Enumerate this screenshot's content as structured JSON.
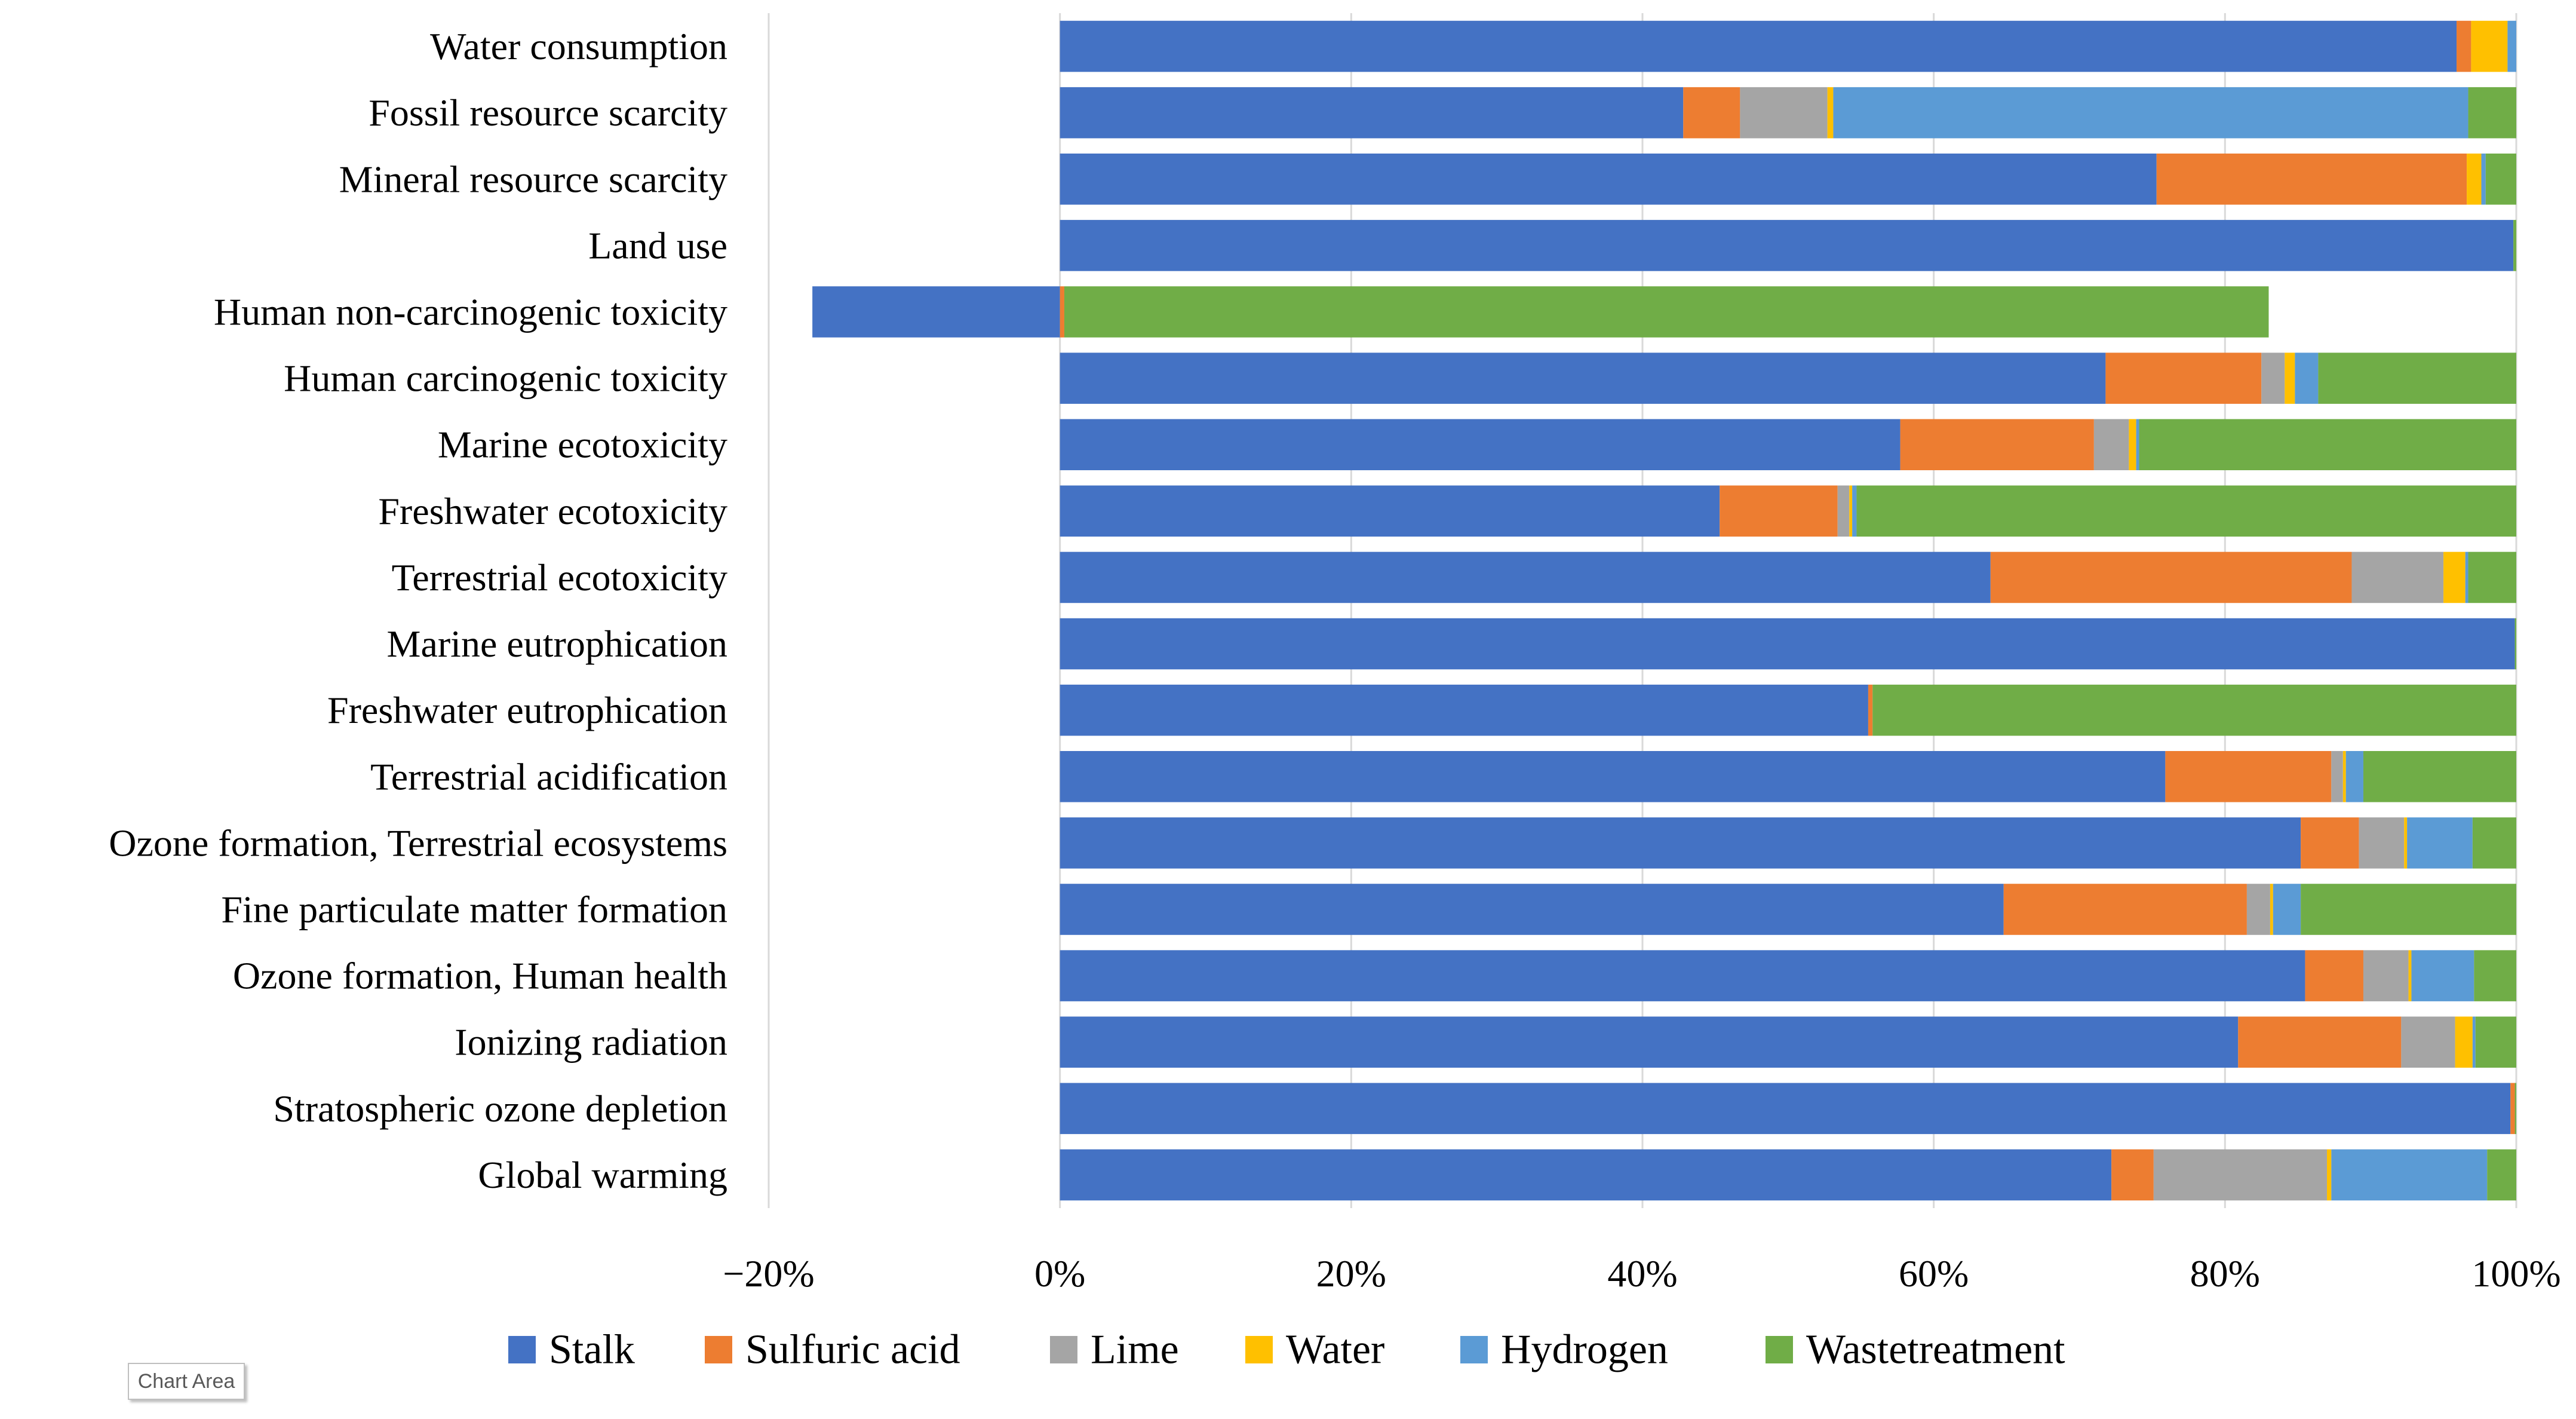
{
  "tooltip": "Chart Area",
  "chart_data": {
    "type": "bar",
    "orientation": "horizontal",
    "stacked": true,
    "title": "",
    "xlabel": "",
    "ylabel": "",
    "xlim": [
      -0.2,
      1.0
    ],
    "x_ticks": [
      -0.2,
      0,
      0.2,
      0.4,
      0.6,
      0.8,
      1.0
    ],
    "x_tick_labels": [
      "−20%",
      "0%",
      "20%",
      "40%",
      "60%",
      "80%",
      "100%"
    ],
    "gridlines": true,
    "legend_position": "bottom",
    "categories": [
      "Water consumption",
      "Fossil resource scarcity",
      "Mineral resource scarcity",
      "Land use",
      "Human non-carcinogenic toxicity",
      "Human carcinogenic toxicity",
      "Marine ecotoxicity",
      "Freshwater ecotoxicity",
      "Terrestrial ecotoxicity",
      "Marine eutrophication",
      "Freshwater eutrophication",
      "Terrestrial acidification",
      "Ozone formation, Terrestrial ecosystems",
      "Fine particulate matter formation",
      "Ozone formation, Human health",
      "Ionizing radiation",
      "Stratospheric ozone depletion",
      "Global warming"
    ],
    "series": [
      {
        "name": "Stalk",
        "color": "#4472C4",
        "values": [
          0.959,
          0.428,
          0.753,
          0.998,
          -0.17,
          0.718,
          0.577,
          0.453,
          0.639,
          0.999,
          0.555,
          0.759,
          0.852,
          0.648,
          0.855,
          0.809,
          0.996,
          0.722
        ]
      },
      {
        "name": "Sulfuric acid",
        "color": "#ED7D31",
        "values": [
          0.01,
          0.039,
          0.213,
          0.0,
          0.003,
          0.107,
          0.133,
          0.081,
          0.248,
          0.0,
          0.003,
          0.114,
          0.04,
          0.167,
          0.04,
          0.112,
          0.003,
          0.029
        ]
      },
      {
        "name": "Lime",
        "color": "#A5A5A5",
        "values": [
          0.0,
          0.06,
          0.0,
          0.0,
          0.0,
          0.016,
          0.024,
          0.008,
          0.063,
          0.0,
          0.0,
          0.008,
          0.031,
          0.016,
          0.031,
          0.037,
          0.0,
          0.119
        ]
      },
      {
        "name": "Water",
        "color": "#FFC000",
        "values": [
          0.025,
          0.004,
          0.01,
          0.0,
          0.0,
          0.007,
          0.005,
          0.002,
          0.015,
          0.0,
          0.0,
          0.002,
          0.002,
          0.002,
          0.002,
          0.012,
          0.0,
          0.003
        ]
      },
      {
        "name": "Hydrogen",
        "color": "#5B9BD5",
        "values": [
          0.006,
          0.436,
          0.003,
          0.0,
          0.0,
          0.016,
          0.002,
          0.003,
          0.002,
          0.0,
          0.0,
          0.012,
          0.045,
          0.019,
          0.043,
          0.002,
          0.0,
          0.107
        ]
      },
      {
        "name": "Wastetreatment",
        "color": "#70AD47",
        "values": [
          0.0,
          0.033,
          0.021,
          0.002,
          0.827,
          0.136,
          0.259,
          0.453,
          0.033,
          0.001,
          0.442,
          0.105,
          0.03,
          0.148,
          0.029,
          0.028,
          0.001,
          0.02
        ]
      }
    ]
  }
}
